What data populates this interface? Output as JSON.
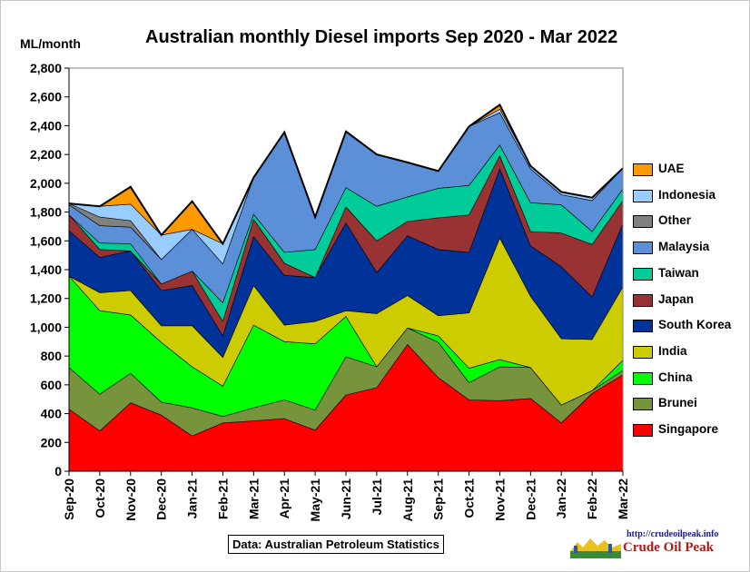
{
  "chart_data": {
    "type": "area",
    "title": "Australian monthly Diesel imports Sep 2020 - Mar 2022",
    "ylabel": "ML/month",
    "xlabel": "",
    "ylim": [
      0,
      2800
    ],
    "yticks": [
      0,
      200,
      400,
      600,
      800,
      1000,
      1200,
      1400,
      1600,
      1800,
      2000,
      2200,
      2400,
      2600,
      2800
    ],
    "ytick_labels": [
      "0",
      "200",
      "400",
      "600",
      "800",
      "1,000",
      "1,200",
      "1,400",
      "1,600",
      "1,800",
      "2,000",
      "2,200",
      "2,400",
      "2,600",
      "2,800"
    ],
    "stacked": true,
    "grid": false,
    "legend_position": "right",
    "plot_background": "#ffffff",
    "categories": [
      "Sep-20",
      "Oct-20",
      "Nov-20",
      "Dec-20",
      "Jan-21",
      "Feb-21",
      "Mar-21",
      "Apr-21",
      "May-21",
      "Jun-21",
      "Jul-21",
      "Aug-21",
      "Sep-21",
      "Oct-21",
      "Nov-21",
      "Dec-21",
      "Jan-22",
      "Feb-22",
      "Mar-22"
    ],
    "series": [
      {
        "name": "Singapore",
        "color": "#ff0000",
        "values": [
          430,
          280,
          475,
          390,
          245,
          335,
          350,
          365,
          285,
          530,
          580,
          880,
          650,
          495,
          490,
          505,
          335,
          540,
          670
        ]
      },
      {
        "name": "Brunei",
        "color": "#77933c",
        "values": [
          290,
          255,
          205,
          90,
          195,
          45,
          90,
          130,
          140,
          265,
          145,
          115,
          245,
          120,
          235,
          215,
          125,
          20,
          30
        ]
      },
      {
        "name": "China",
        "color": "#00ff00",
        "values": [
          635,
          580,
          405,
          415,
          285,
          210,
          575,
          405,
          460,
          280,
          0,
          0,
          45,
          100,
          50,
          0,
          0,
          0,
          70
        ]
      },
      {
        "name": "India",
        "color": "#cccc00",
        "values": [
          0,
          125,
          170,
          115,
          285,
          200,
          275,
          115,
          155,
          40,
          370,
          225,
          140,
          385,
          845,
          495,
          460,
          355,
          510
        ]
      },
      {
        "name": "South Korea",
        "color": "#003399",
        "values": [
          315,
          245,
          275,
          245,
          280,
          150,
          340,
          345,
          305,
          610,
          285,
          415,
          460,
          420,
          480,
          350,
          500,
          295,
          440
        ]
      },
      {
        "name": "Japan",
        "color": "#993333",
        "values": [
          110,
          55,
          0,
          45,
          100,
          100,
          120,
          85,
          0,
          110,
          220,
          100,
          220,
          260,
          90,
          100,
          235,
          365,
          160
        ]
      },
      {
        "name": "Taiwan",
        "color": "#00cc99",
        "values": [
          0,
          45,
          50,
          0,
          0,
          130,
          35,
          75,
          195,
          135,
          240,
          170,
          205,
          205,
          75,
          200,
          195,
          90,
          80
        ]
      },
      {
        "name": "Malaysia",
        "color": "#5b8fd8",
        "values": [
          70,
          120,
          115,
          170,
          290,
          270,
          255,
          835,
          225,
          390,
          360,
          240,
          120,
          410,
          225,
          235,
          70,
          215,
          145
        ]
      },
      {
        "name": "Other",
        "color": "#808080",
        "values": [
          10,
          60,
          45,
          0,
          0,
          0,
          0,
          0,
          0,
          0,
          0,
          0,
          0,
          0,
          0,
          0,
          0,
          0,
          0
        ]
      },
      {
        "name": "Indonesia",
        "color": "#99ccff",
        "values": [
          0,
          75,
          115,
          170,
          0,
          140,
          0,
          0,
          0,
          0,
          0,
          0,
          0,
          0,
          25,
          20,
          20,
          20,
          0
        ]
      },
      {
        "name": "UAE",
        "color": "#ff9900",
        "values": [
          0,
          0,
          120,
          0,
          195,
          0,
          0,
          0,
          0,
          0,
          0,
          0,
          0,
          0,
          30,
          0,
          0,
          0,
          0
        ]
      }
    ],
    "annotations": [
      "Data: Australian Petroleum Statistics"
    ]
  },
  "logo": {
    "url": "http://crudeoilpeak.info",
    "name": "Crude Oil Peak"
  }
}
